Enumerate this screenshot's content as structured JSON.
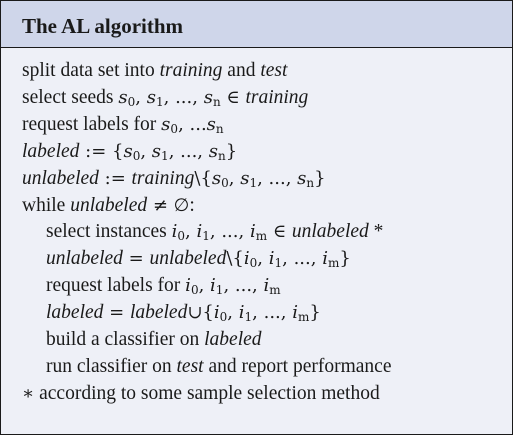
{
  "title": "The AL algorithm",
  "lines": [
    {
      "indent": false,
      "segments": [
        {
          "s": "n",
          "t": "split data set into "
        },
        {
          "s": "i",
          "t": "training"
        },
        {
          "s": "n",
          "t": " and "
        },
        {
          "s": "i",
          "t": "test"
        }
      ]
    },
    {
      "indent": false,
      "segments": [
        {
          "s": "n",
          "t": "select seeds "
        },
        {
          "s": "m",
          "t": "s",
          "sub": "0"
        },
        {
          "s": "s",
          "t": ", "
        },
        {
          "s": "m",
          "t": "s",
          "sub": "1"
        },
        {
          "s": "s",
          "t": ", ..., "
        },
        {
          "s": "m",
          "t": "s",
          "sub": "n"
        },
        {
          "s": "s",
          "t": " ∈ "
        },
        {
          "s": "i",
          "t": "training"
        }
      ]
    },
    {
      "indent": false,
      "segments": [
        {
          "s": "n",
          "t": "request labels for "
        },
        {
          "s": "m",
          "t": "s",
          "sub": "0"
        },
        {
          "s": "s",
          "t": ", ..."
        },
        {
          "s": "m",
          "t": "s",
          "sub": "n"
        }
      ]
    },
    {
      "indent": false,
      "segments": [
        {
          "s": "i",
          "t": "labeled"
        },
        {
          "s": "s",
          "t": " := {"
        },
        {
          "s": "m",
          "t": "s",
          "sub": "0"
        },
        {
          "s": "s",
          "t": ", "
        },
        {
          "s": "m",
          "t": "s",
          "sub": "1"
        },
        {
          "s": "s",
          "t": ", ..., "
        },
        {
          "s": "m",
          "t": "s",
          "sub": "n"
        },
        {
          "s": "s",
          "t": "}"
        }
      ]
    },
    {
      "indent": false,
      "segments": [
        {
          "s": "i",
          "t": "unlabeled"
        },
        {
          "s": "s",
          "t": " := "
        },
        {
          "s": "i",
          "t": "training"
        },
        {
          "s": "s",
          "t": "\\{"
        },
        {
          "s": "m",
          "t": "s",
          "sub": "0"
        },
        {
          "s": "s",
          "t": ", "
        },
        {
          "s": "m",
          "t": "s",
          "sub": "1"
        },
        {
          "s": "s",
          "t": ", ..., "
        },
        {
          "s": "m",
          "t": "s",
          "sub": "n"
        },
        {
          "s": "s",
          "t": "}"
        }
      ]
    },
    {
      "indent": false,
      "segments": [
        {
          "s": "n",
          "t": "while "
        },
        {
          "s": "i",
          "t": "unlabeled"
        },
        {
          "s": "s",
          "t": " ≠ ∅"
        },
        {
          "s": "n",
          "t": ":"
        }
      ]
    },
    {
      "indent": true,
      "segments": [
        {
          "s": "n",
          "t": "select instances "
        },
        {
          "s": "m",
          "t": "i",
          "sub": "0"
        },
        {
          "s": "s",
          "t": ", "
        },
        {
          "s": "m",
          "t": "i",
          "sub": "1"
        },
        {
          "s": "s",
          "t": ", ..., "
        },
        {
          "s": "m",
          "t": "i",
          "sub": "m"
        },
        {
          "s": "s",
          "t": " ∈ "
        },
        {
          "s": "i",
          "t": "unlabeled"
        },
        {
          "s": "n",
          "t": " *"
        }
      ]
    },
    {
      "indent": true,
      "segments": [
        {
          "s": "i",
          "t": "unlabeled"
        },
        {
          "s": "s",
          "t": " = "
        },
        {
          "s": "i",
          "t": "unlabeled"
        },
        {
          "s": "s",
          "t": "\\{"
        },
        {
          "s": "m",
          "t": "i",
          "sub": "0"
        },
        {
          "s": "s",
          "t": ", "
        },
        {
          "s": "m",
          "t": "i",
          "sub": "1"
        },
        {
          "s": "s",
          "t": ", ..., "
        },
        {
          "s": "m",
          "t": "i",
          "sub": "m"
        },
        {
          "s": "s",
          "t": "}"
        }
      ]
    },
    {
      "indent": true,
      "segments": [
        {
          "s": "n",
          "t": "request labels for "
        },
        {
          "s": "m",
          "t": "i",
          "sub": "0"
        },
        {
          "s": "s",
          "t": ", "
        },
        {
          "s": "m",
          "t": "i",
          "sub": "1"
        },
        {
          "s": "s",
          "t": ", ..., "
        },
        {
          "s": "m",
          "t": "i",
          "sub": "m"
        }
      ]
    },
    {
      "indent": true,
      "segments": [
        {
          "s": "i",
          "t": "labeled"
        },
        {
          "s": "s",
          "t": " = "
        },
        {
          "s": "i",
          "t": "labeled"
        },
        {
          "s": "s",
          "t": "∪{"
        },
        {
          "s": "m",
          "t": "i",
          "sub": "0"
        },
        {
          "s": "s",
          "t": ", "
        },
        {
          "s": "m",
          "t": "i",
          "sub": "1"
        },
        {
          "s": "s",
          "t": ", ..., "
        },
        {
          "s": "m",
          "t": "i",
          "sub": "m"
        },
        {
          "s": "s",
          "t": "}"
        }
      ]
    },
    {
      "indent": true,
      "segments": [
        {
          "s": "n",
          "t": "build a classifier on "
        },
        {
          "s": "i",
          "t": "labeled"
        }
      ]
    },
    {
      "indent": true,
      "segments": [
        {
          "s": "n",
          "t": "run classifier on "
        },
        {
          "s": "i",
          "t": "test"
        },
        {
          "s": "n",
          "t": " and report performance"
        }
      ]
    },
    {
      "indent": false,
      "segments": [
        {
          "s": "s",
          "t": "∗"
        },
        {
          "s": "n",
          "t": " according to some sample selection method"
        }
      ]
    }
  ]
}
